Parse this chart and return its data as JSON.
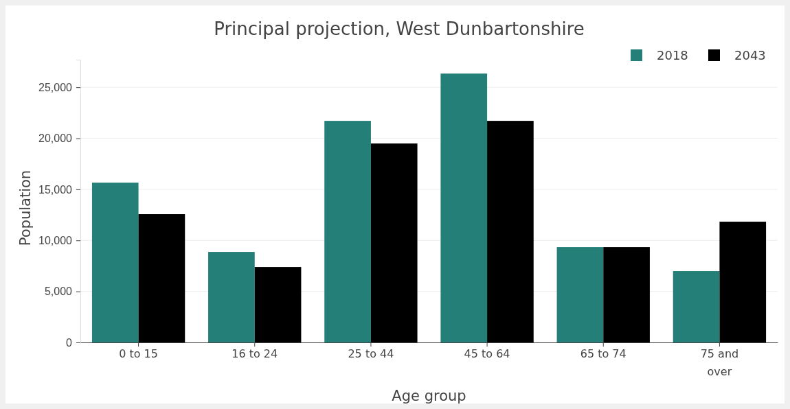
{
  "chart_data": {
    "type": "bar",
    "title": "Principal projection, West Dunbartonshire",
    "xlabel": "Age group",
    "ylabel": "Population",
    "categories": [
      "0 to 15",
      "16 to 24",
      "25 to 44",
      "45 to 64",
      "65 to 74",
      "75 and over"
    ],
    "series": [
      {
        "name": "2018",
        "color": "#237f77",
        "values": [
          15650,
          8870,
          21710,
          26340,
          9340,
          6990
        ]
      },
      {
        "name": "2043",
        "color": "#000000",
        "values": [
          12570,
          7390,
          19490,
          21710,
          9340,
          11830
        ]
      }
    ],
    "ylim": [
      0,
      27700
    ],
    "yticks": [
      0,
      {
        "value": 5000,
        "label": "5,000"
      },
      {
        "value": 10000,
        "label": "10,000"
      },
      {
        "value": 15000,
        "label": "15,000"
      },
      {
        "value": 20000,
        "label": "20,000"
      },
      {
        "value": 25000,
        "label": "25,000"
      }
    ],
    "grid": "y",
    "legend": "top right"
  }
}
